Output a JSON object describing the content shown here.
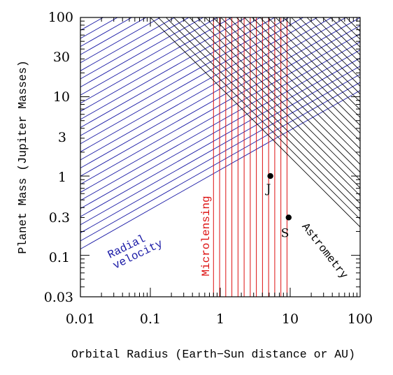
{
  "chart_data": {
    "type": "scatter",
    "title": "",
    "xlabel": "Orbital Radius (Earth−Sun distance or AU)",
    "ylabel": "Planet Mass (Jupiter Masses)",
    "x_scale": "log",
    "y_scale": "log",
    "xlim": [
      0.01,
      100
    ],
    "ylim": [
      0.03,
      100
    ],
    "x_tick_labels": [
      "0.01",
      "0.1",
      "1",
      "10",
      "100"
    ],
    "x_ticks": [
      0.01,
      0.1,
      1,
      10,
      100
    ],
    "y_tick_labels": [
      "0.03",
      "0.1",
      "0.3",
      "1",
      "3",
      "10",
      "30",
      "100"
    ],
    "y_ticks": [
      0.03,
      0.1,
      0.3,
      1,
      3,
      10,
      30,
      100
    ],
    "grid": false,
    "series": [
      {
        "name": "J",
        "points": [
          {
            "x": 5.2,
            "y": 1.0
          }
        ]
      },
      {
        "name": "S",
        "points": [
          {
            "x": 9.5,
            "y": 0.3
          }
        ]
      }
    ],
    "regions": [
      {
        "name": "Radial velocity",
        "color": "#1a1aa6",
        "boundary_slope": 0.5,
        "lower_boundary": [
          {
            "x": 0.01,
            "y": 0.12
          },
          {
            "x": 100,
            "y": 12
          }
        ]
      },
      {
        "name": "Microlensing",
        "color": "#dd1111",
        "x_range": [
          0.8,
          9
        ]
      },
      {
        "name": "Astrometry",
        "color": "#000000",
        "boundary_slope": -1,
        "lower_boundary": [
          {
            "x": 0.1,
            "y": 100
          },
          {
            "x": 100,
            "y": 0.1
          }
        ]
      }
    ],
    "colors": {
      "radial_velocity": "#1a1aa6",
      "microlensing": "#dd1111",
      "astrometry": "#000000"
    }
  }
}
